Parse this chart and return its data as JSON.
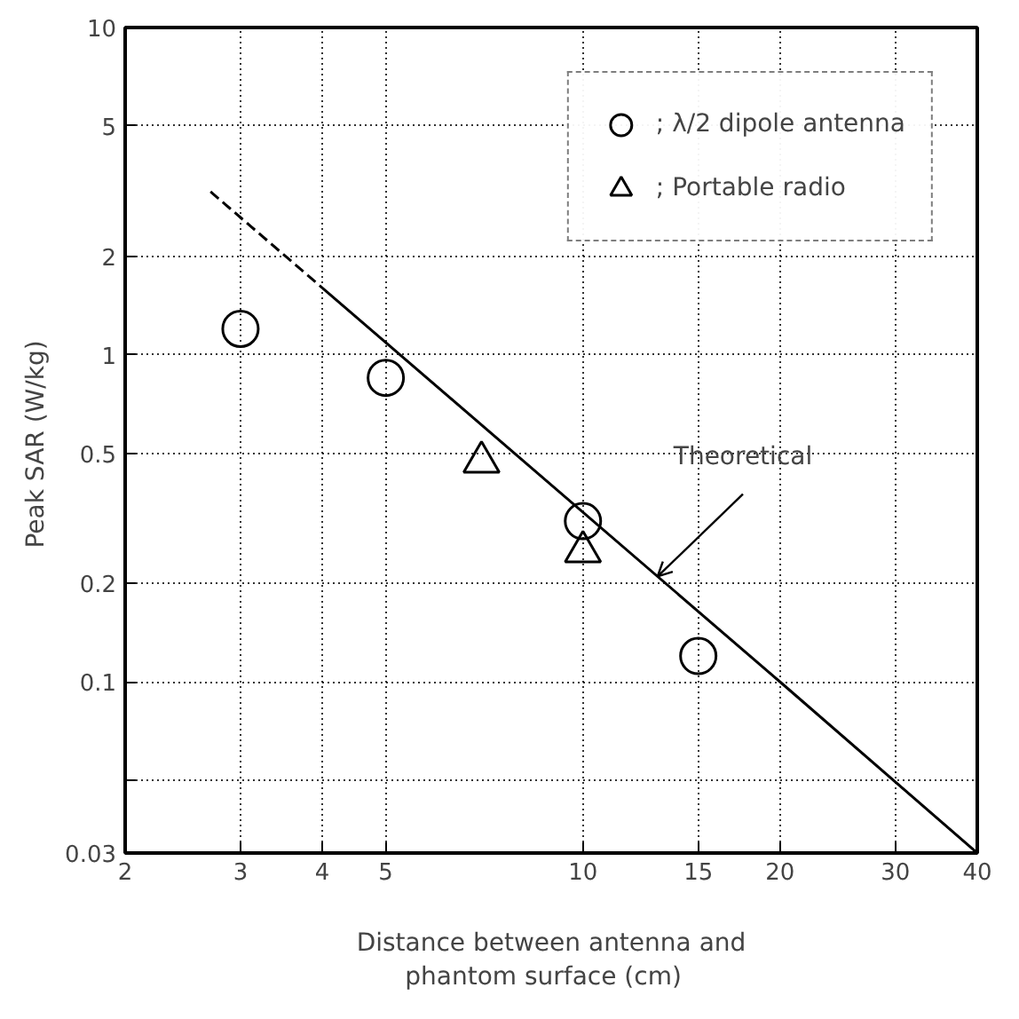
{
  "chart_data": {
    "type": "scatter",
    "xlabel": "Distance between antenna and\nphantom surface   (cm)",
    "ylabel": "Peak SAR  (W/kg)",
    "log": "xy",
    "grid": true,
    "legend": "top right",
    "xlim": [
      2,
      40
    ],
    "ylim": [
      0.03,
      10
    ],
    "xticks": [
      2,
      3,
      4,
      5,
      10,
      15,
      20,
      30,
      40
    ],
    "yticks": [
      {
        "value": 0.03,
        "label": "0.03"
      },
      0.1,
      0.2,
      {
        "value": 0.05,
        "label": null
      },
      0.5,
      1,
      2,
      5,
      10
    ],
    "series": [
      {
        "name": "; λ/2 dipole antenna",
        "marker": "circle",
        "color": "#000000",
        "x": [
          3,
          5,
          10,
          15
        ],
        "values": [
          1.2,
          0.85,
          0.31,
          0.12
        ]
      },
      {
        "name": "; Portable radio",
        "marker": "triangle",
        "color": "#000000",
        "x": [
          7,
          10
        ],
        "values": [
          0.47,
          0.25
        ]
      },
      {
        "type": "line",
        "line_style": "dashed",
        "color": "#000000",
        "x": [
          2.7,
          4
        ],
        "values": [
          3.15,
          1.6
        ]
      },
      {
        "type": "line",
        "line_style": "solid",
        "color": "#000000",
        "x": [
          4,
          20,
          40
        ],
        "values": [
          1.6,
          0.1,
          0.03
        ]
      }
    ],
    "annotations": [
      {
        "text": "Theoretical",
        "x": 13,
        "y": 0.21
      }
    ]
  }
}
